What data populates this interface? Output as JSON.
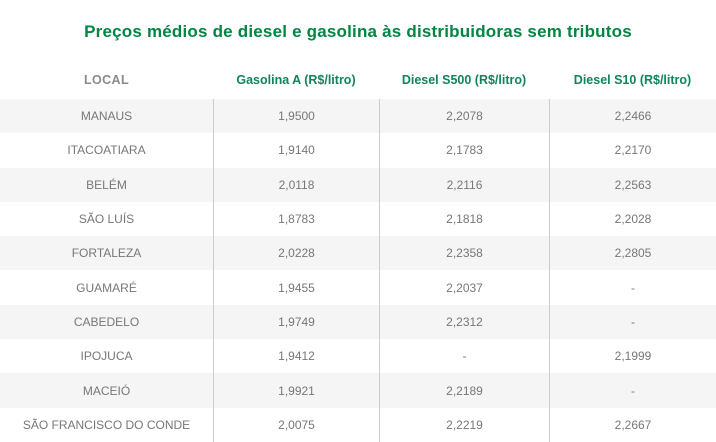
{
  "page": {
    "title": "Preços médios de diesel e gasolina às distribuidoras sem tributos"
  },
  "colors": {
    "title_green": "#008542",
    "header_green": "#12835C",
    "header_gray": "#8A8A8A",
    "body_text": "#777777",
    "row_stripe": "#F5F5F5",
    "column_separator": "#CCCCCC",
    "background": "#FFFFFF"
  },
  "table": {
    "columns": [
      {
        "key": "local",
        "label": "LOCAL"
      },
      {
        "key": "gasolina_a",
        "label": "Gasolina A (R$/litro)"
      },
      {
        "key": "diesel_s500",
        "label": "Diesel S500 (R$/litro)"
      },
      {
        "key": "diesel_s10",
        "label": "Diesel S10 (R$/litro)"
      }
    ],
    "missing_value_marker": "-",
    "rows": [
      [
        "MANAUS",
        "1,9500",
        "2,2078",
        "2,2466"
      ],
      [
        "ITACOATIARA",
        "1,9140",
        "2,1783",
        "2,2170"
      ],
      [
        "BELÉM",
        "2,0118",
        "2,2116",
        "2,2563"
      ],
      [
        "SÃO LUÍS",
        "1,8783",
        "2,1818",
        "2,2028"
      ],
      [
        "FORTALEZA",
        "2,0228",
        "2,2358",
        "2,2805"
      ],
      [
        "GUAMARÉ",
        "1,9455",
        "2,2037",
        "-"
      ],
      [
        "CABEDELO",
        "1,9749",
        "2,2312",
        "-"
      ],
      [
        "IPOJUCA",
        "1,9412",
        "-",
        "2,1999"
      ],
      [
        "MACEIÓ",
        "1,9921",
        "2,2189",
        "-"
      ],
      [
        "SÃO FRANCISCO DO CONDE",
        "2,0075",
        "2,2219",
        "2,2667"
      ]
    ]
  },
  "chart_data": {
    "type": "table",
    "title": "Preços médios de diesel e gasolina às distribuidoras sem tributos",
    "columns": [
      "LOCAL",
      "Gasolina A (R$/litro)",
      "Diesel S500 (R$/litro)",
      "Diesel S10 (R$/litro)"
    ],
    "rows": [
      [
        "MANAUS",
        1.95,
        2.2078,
        2.2466
      ],
      [
        "ITACOATIARA",
        1.914,
        2.1783,
        2.217
      ],
      [
        "BELÉM",
        2.0118,
        2.2116,
        2.2563
      ],
      [
        "SÃO LUÍS",
        1.8783,
        2.1818,
        2.2028
      ],
      [
        "FORTALEZA",
        2.0228,
        2.2358,
        2.2805
      ],
      [
        "GUAMARÉ",
        1.9455,
        2.2037,
        null
      ],
      [
        "CABEDELO",
        1.9749,
        2.2312,
        null
      ],
      [
        "IPOJUCA",
        1.9412,
        null,
        2.1999
      ],
      [
        "MACEIÓ",
        1.9921,
        2.2189,
        null
      ],
      [
        "SÃO FRANCISCO DO CONDE",
        2.0075,
        2.2219,
        2.2667
      ]
    ],
    "units": "R$/litro",
    "decimal_separator": ",",
    "missing_value_marker": "-",
    "layout": {
      "striped_rows": true,
      "column_separators": true,
      "header_position": "top"
    }
  }
}
